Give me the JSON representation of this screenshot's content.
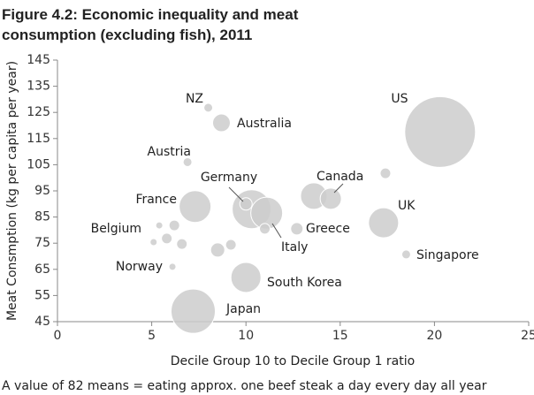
{
  "chart_data": {
    "type": "scatter",
    "title_lines": [
      "Figure 4.2: Economic inequality and meat",
      "consumption (excluding fish), 2011"
    ],
    "x_label": "Decile Group 10 to Decile Group 1 ratio",
    "y_label": "Meat Consmption (kg per capita per year)",
    "footnote": "A value of 82 means = eating approx. one beef steak a day every day all year",
    "xlim": [
      0,
      25
    ],
    "xticks": [
      0,
      5,
      10,
      15,
      20,
      25
    ],
    "ylim": [
      45,
      145
    ],
    "yticks": [
      45,
      55,
      65,
      75,
      85,
      95,
      105,
      115,
      125,
      135,
      145
    ],
    "color": "#cccccc",
    "labels": [
      "US",
      "NZ",
      "Australia",
      "Austria",
      "Germany",
      null,
      "Italy",
      null,
      "France",
      "Canada",
      null,
      null,
      "UK",
      "Greece",
      "Singapore",
      "Belgium",
      null,
      null,
      null,
      null,
      null,
      null,
      "Norway",
      "South Korea",
      "Japan"
    ],
    "x": [
      20.3,
      8.0,
      8.7,
      6.9,
      10.0,
      10.3,
      11.1,
      11.0,
      7.3,
      14.5,
      13.6,
      17.4,
      17.3,
      12.7,
      18.5,
      5.8,
      5.4,
      6.2,
      5.1,
      6.6,
      8.5,
      9.2,
      6.1,
      10.0,
      7.2
    ],
    "y": [
      117.5,
      126.8,
      121,
      106,
      90,
      88,
      86.5,
      80.5,
      89,
      92,
      93,
      101.7,
      82.8,
      80.5,
      70.7,
      76.8,
      81.8,
      81.8,
      75.4,
      74.7,
      72.4,
      74.4,
      66,
      61.9,
      49
    ],
    "sizes": [
      40,
      5,
      10,
      5,
      7,
      22,
      18,
      6,
      18,
      12,
      15,
      6,
      17,
      7,
      5,
      6,
      4,
      6,
      4,
      6,
      8,
      6,
      4,
      17,
      25
    ]
  }
}
